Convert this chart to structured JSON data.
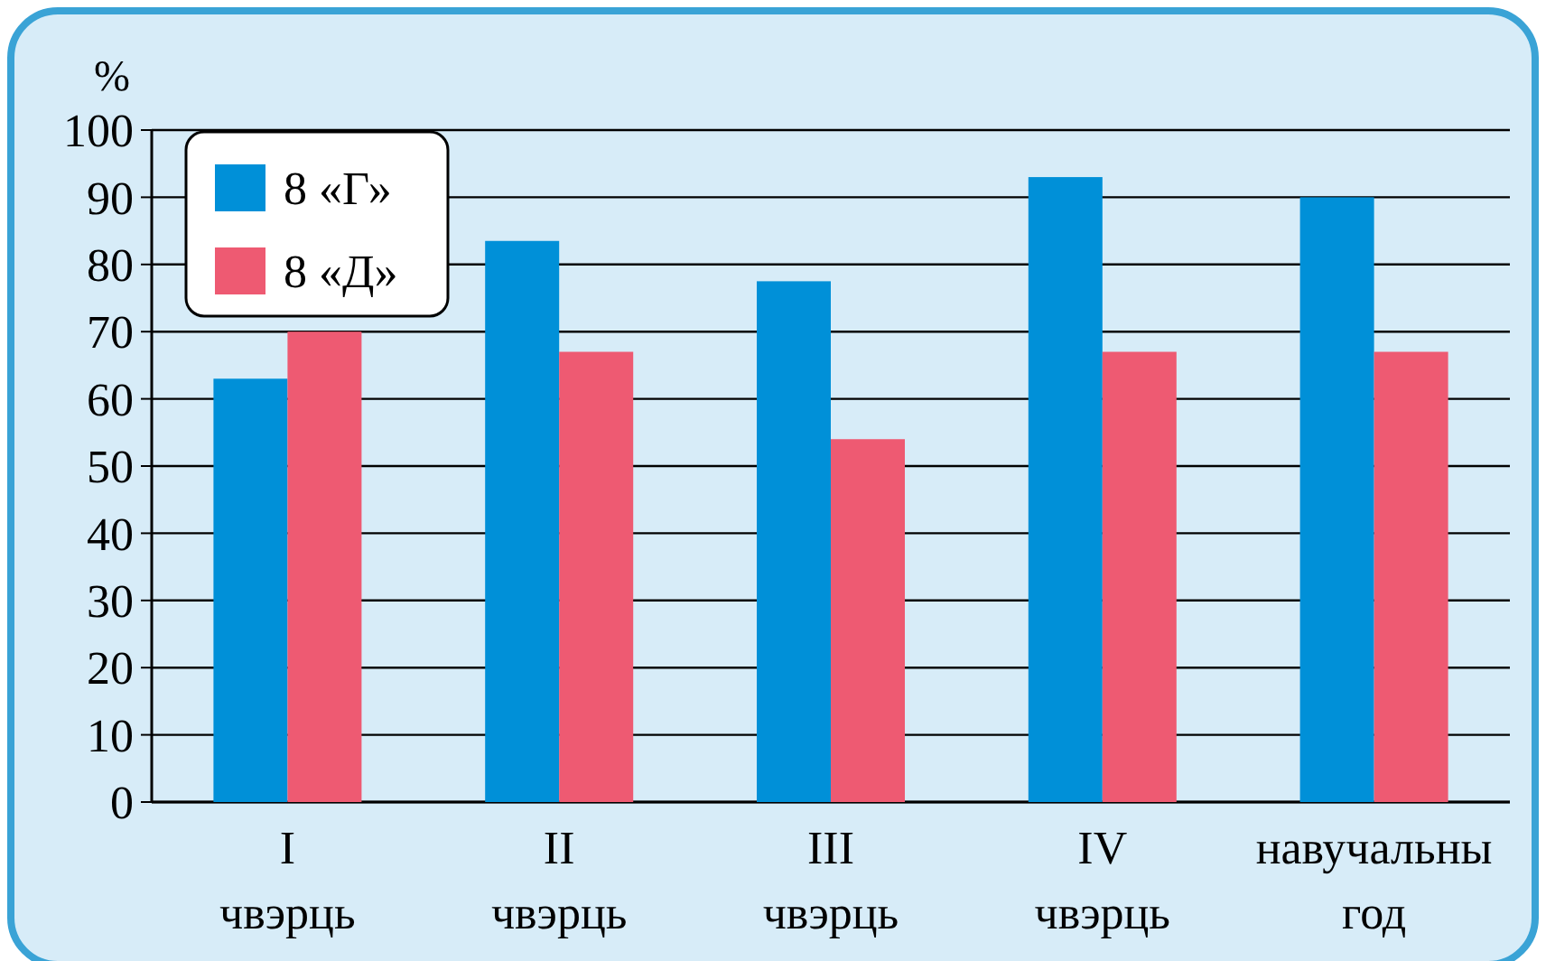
{
  "chart_data": {
    "type": "bar",
    "ylabel": "%",
    "categories": [
      "I\nчвэрць",
      "II\nчвэрць",
      "III\nчвэрць",
      "IV\nчвэрць",
      "навучальны\nгод"
    ],
    "series": [
      {
        "name": "8 «Г»",
        "color": "#0090d8",
        "values": [
          63,
          83.5,
          77.5,
          93,
          90
        ]
      },
      {
        "name": "8 «Д»",
        "color": "#ee5a72",
        "values": [
          70,
          67,
          54,
          67,
          67
        ]
      }
    ],
    "ylim": [
      0,
      100
    ],
    "yticks": [
      0,
      10,
      20,
      30,
      40,
      50,
      60,
      70,
      80,
      90,
      100
    ],
    "grid": "y",
    "legend": "top left"
  }
}
